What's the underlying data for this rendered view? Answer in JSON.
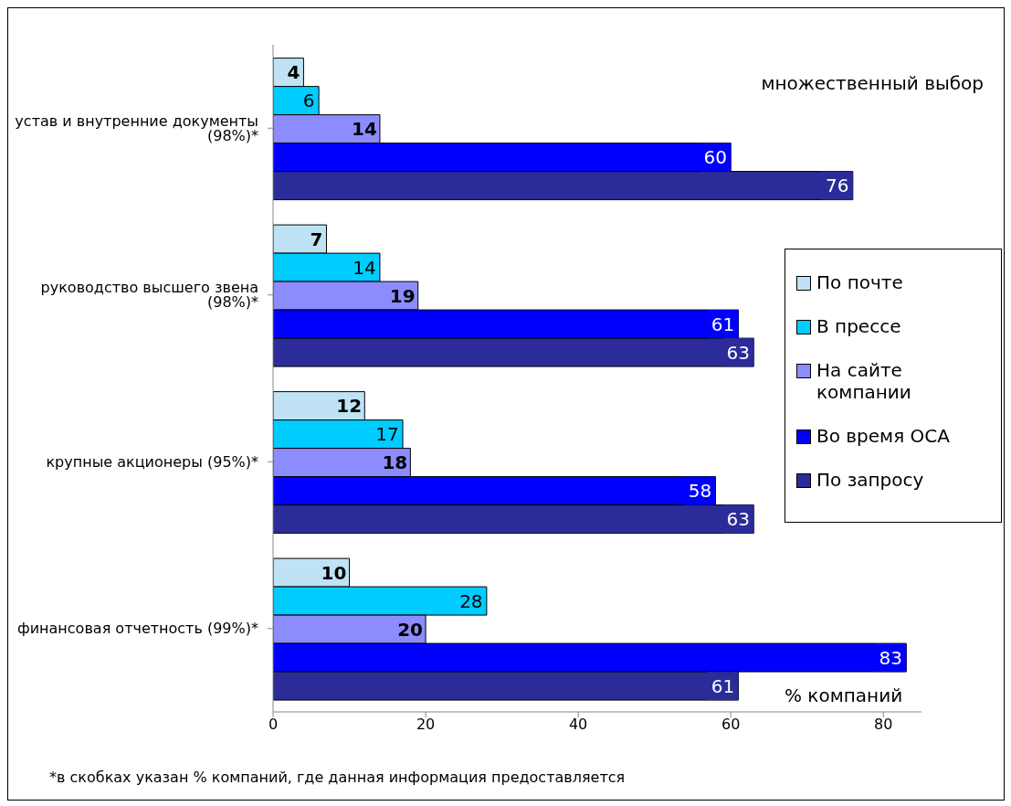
{
  "chart_data": {
    "type": "bar",
    "orientation": "horizontal",
    "categories": [
      "устав и внутренние документы (98%)*",
      "руководство высшего звена (98%)*",
      "крупные акционеры (95%)*",
      "финансовая отчетность (99%)*"
    ],
    "series": [
      {
        "name": "По почте",
        "color": "#bfe3f5",
        "values": [
          4,
          7,
          12,
          10
        ]
      },
      {
        "name": "В прессе",
        "color": "#00ccff",
        "values": [
          6,
          14,
          17,
          28
        ]
      },
      {
        "name": "На сайте компании",
        "color": "#8c8cff",
        "values": [
          14,
          19,
          18,
          20
        ]
      },
      {
        "name": "Во время ОСА",
        "color": "#0000ff",
        "values": [
          60,
          61,
          58,
          83
        ]
      },
      {
        "name": "По запросу",
        "color": "#2b2b9a",
        "values": [
          76,
          63,
          63,
          61
        ]
      }
    ],
    "xlim": [
      0,
      85
    ],
    "xticks": [
      0,
      20,
      40,
      60,
      80
    ],
    "xlabel": "% компаний",
    "data_labels": true,
    "legend": "right",
    "grid": false,
    "annotations": [
      "множественный выбор",
      "*в скобках указан % компаний, где данная информация предоставляется"
    ]
  }
}
